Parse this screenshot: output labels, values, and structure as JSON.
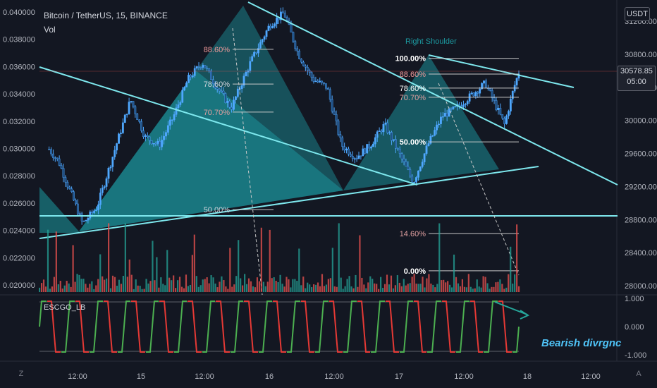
{
  "header": {
    "title": "Bitcoin / TetherUS, 15, BINANCE",
    "volume_label": "Vol",
    "oscillator_label": "ESCGO_LB",
    "currency_button": "USDT",
    "last_price": "30578.85",
    "countdown": "05:00",
    "left_button": "Z",
    "right_button": "A"
  },
  "annotations": {
    "right_shoulder": "Right Shoulder",
    "divergence": "Bearish divrgnc"
  },
  "colors": {
    "background": "#131722",
    "candle": "#4fa8ff",
    "pattern_fill": "#1c9aa1",
    "trendline": "#7ee8ee",
    "vol_up": "#26a69a",
    "vol_down": "#ef5350",
    "osc_green": "#4caf50",
    "osc_red": "#e53935"
  },
  "chart_data": {
    "type": "line",
    "title": "Bitcoin / TetherUS, 15, BINANCE",
    "x_ticks": [
      "12:00",
      "15",
      "12:00",
      "16",
      "12:00",
      "17",
      "12:00",
      "18",
      "12:00"
    ],
    "left_axis_ticks": [
      "0.040000",
      "0.038000",
      "0.036000",
      "0.034000",
      "0.032000",
      "0.030000",
      "0.028000",
      "0.026000",
      "0.024000",
      "0.022000",
      "0.020000"
    ],
    "right_axis_ticks": [
      "31200.00",
      "30800.00",
      "30400.00",
      "30000.00",
      "29600.00",
      "29200.00",
      "28800.00",
      "28400.00",
      "28000.00"
    ],
    "right_axis_range": [
      28000,
      31200
    ],
    "oscillator_ticks": [
      "1.000",
      "0.000",
      "-1.000"
    ],
    "oscillator_range": [
      -1,
      1
    ],
    "fib_left": [
      {
        "level": "88.60%",
        "price": 30860
      },
      {
        "level": "78.60%",
        "price": 30440
      },
      {
        "level": "70.70%",
        "price": 30100
      },
      {
        "level": "50.00%",
        "price": 28920
      }
    ],
    "fib_right": [
      {
        "level": "100.00%",
        "price": 30750
      },
      {
        "level": "88.60%",
        "price": 30560
      },
      {
        "level": "78.60%",
        "price": 30390
      },
      {
        "level": "70.70%",
        "price": 30280
      },
      {
        "level": "50.00%",
        "price": 29740
      },
      {
        "level": "14.60%",
        "price": 28630
      },
      {
        "level": "0.00%",
        "price": 28180
      }
    ],
    "price_path": [
      [
        0.02,
        29650
      ],
      [
        0.04,
        29500
      ],
      [
        0.06,
        29200
      ],
      [
        0.09,
        28750
      ],
      [
        0.12,
        28950
      ],
      [
        0.16,
        29700
      ],
      [
        0.19,
        30250
      ],
      [
        0.22,
        29800
      ],
      [
        0.25,
        29700
      ],
      [
        0.28,
        30050
      ],
      [
        0.31,
        30500
      ],
      [
        0.34,
        30700
      ],
      [
        0.37,
        30400
      ],
      [
        0.4,
        30150
      ],
      [
        0.44,
        30700
      ],
      [
        0.48,
        31150
      ],
      [
        0.51,
        31300
      ],
      [
        0.54,
        30800
      ],
      [
        0.57,
        30500
      ],
      [
        0.6,
        30400
      ],
      [
        0.63,
        29700
      ],
      [
        0.66,
        29550
      ],
      [
        0.69,
        29700
      ],
      [
        0.72,
        29950
      ],
      [
        0.75,
        29600
      ],
      [
        0.78,
        29250
      ],
      [
        0.81,
        29700
      ],
      [
        0.84,
        30050
      ],
      [
        0.87,
        30150
      ],
      [
        0.9,
        30300
      ],
      [
        0.93,
        30450
      ],
      [
        0.95,
        30200
      ],
      [
        0.97,
        29950
      ],
      [
        0.99,
        30400
      ],
      [
        1.0,
        30580
      ]
    ]
  }
}
